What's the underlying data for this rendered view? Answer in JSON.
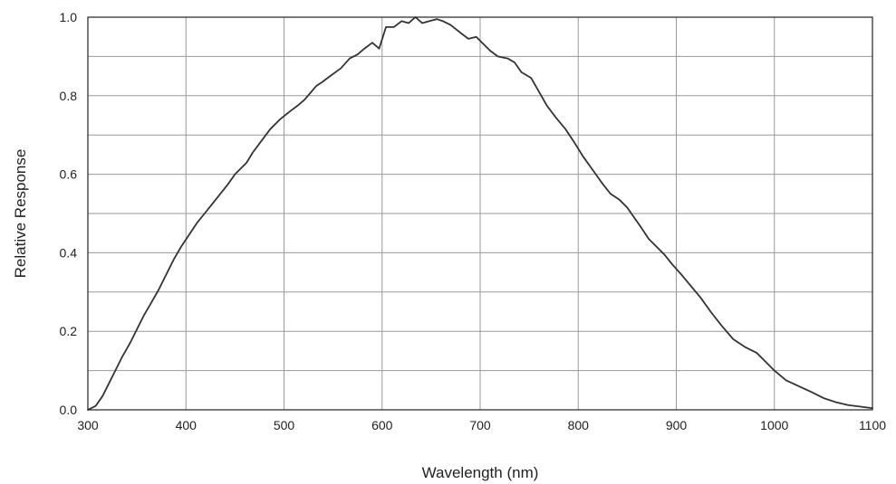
{
  "chart_data": {
    "type": "line",
    "title": "",
    "xlabel": "Wavelength (nm)",
    "ylabel": "Relative Response",
    "xlim": [
      300,
      1100
    ],
    "ylim": [
      0.0,
      1.0
    ],
    "x_ticks": [
      300,
      400,
      500,
      600,
      700,
      800,
      900,
      1000,
      1100
    ],
    "y_ticks": [
      0.0,
      0.2,
      0.4,
      0.6,
      0.8,
      1.0
    ],
    "x_tick_labels": [
      "300",
      "400",
      "500",
      "600",
      "700",
      "800",
      "900",
      "1000",
      "1100"
    ],
    "y_tick_labels": [
      "0.0",
      "0.2",
      "0.4",
      "0.6",
      "0.8",
      "1.0"
    ],
    "grid": true,
    "x_minor_grid_step": 100,
    "y_grid_step": 0.1,
    "line_color": "#333333",
    "series": [
      {
        "x": [
          300,
          308,
          315,
          320,
          328,
          335,
          343,
          350,
          357,
          364,
          372,
          380,
          388,
          395,
          403,
          411,
          419,
          427,
          435,
          443,
          450,
          462,
          468,
          477,
          486,
          496,
          506,
          514,
          521,
          533,
          539,
          547,
          558,
          567,
          575,
          582,
          590,
          597,
          604,
          612,
          620,
          627,
          634,
          641,
          648,
          656,
          662,
          670,
          680,
          688,
          696,
          702,
          710,
          718,
          728,
          735,
          742,
          752,
          760,
          768,
          777,
          787,
          795,
          805,
          815,
          825,
          833,
          842,
          850,
          857,
          864,
          872,
          880,
          888,
          896,
          905,
          915,
          925,
          935,
          946,
          958,
          970,
          982,
          992,
          1000,
          1012,
          1025,
          1038,
          1050,
          1062,
          1075,
          1088,
          1100
        ],
        "y": [
          0.0,
          0.01,
          0.035,
          0.06,
          0.1,
          0.135,
          0.17,
          0.205,
          0.24,
          0.27,
          0.305,
          0.345,
          0.385,
          0.415,
          0.445,
          0.475,
          0.5,
          0.525,
          0.55,
          0.575,
          0.6,
          0.63,
          0.655,
          0.685,
          0.715,
          0.74,
          0.76,
          0.775,
          0.79,
          0.825,
          0.835,
          0.85,
          0.87,
          0.895,
          0.905,
          0.92,
          0.935,
          0.92,
          0.975,
          0.975,
          0.99,
          0.985,
          1.0,
          0.985,
          0.99,
          0.995,
          0.99,
          0.98,
          0.96,
          0.945,
          0.95,
          0.935,
          0.915,
          0.9,
          0.895,
          0.885,
          0.86,
          0.845,
          0.81,
          0.775,
          0.745,
          0.715,
          0.685,
          0.645,
          0.61,
          0.575,
          0.55,
          0.535,
          0.515,
          0.49,
          0.465,
          0.435,
          0.415,
          0.395,
          0.37,
          0.345,
          0.315,
          0.285,
          0.25,
          0.215,
          0.18,
          0.16,
          0.145,
          0.12,
          0.1,
          0.075,
          0.06,
          0.045,
          0.03,
          0.02,
          0.012,
          0.008,
          0.004
        ]
      }
    ]
  }
}
